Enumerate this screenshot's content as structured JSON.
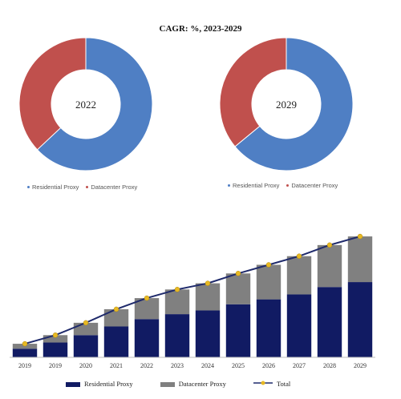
{
  "title": "CAGR:    %, 2023-2029",
  "colors": {
    "residential": "#4f7fc4",
    "datacenter": "#c0504d",
    "bar_residential": "#111b63",
    "bar_datacenter": "#808080",
    "total_line": "#1f2a6b",
    "total_marker": "#e8b923"
  },
  "chart_data": [
    {
      "type": "pie",
      "center_label": "2022",
      "labels": [
        "Residential Proxy",
        "Datacenter Proxy"
      ],
      "values": [
        63,
        37
      ]
    },
    {
      "type": "pie",
      "center_label": "2029",
      "labels": [
        "Residential Proxy",
        "Datacenter Proxy"
      ],
      "values": [
        64,
        36
      ]
    },
    {
      "type": "bar",
      "stacked": true,
      "categories": [
        "2019",
        "2019",
        "2020",
        "2021",
        "2022",
        "2023",
        "2024",
        "2025",
        "2026",
        "2027",
        "2028",
        "2029"
      ],
      "series": [
        {
          "name": "Residential Proxy",
          "values": [
            7,
            12,
            18,
            25,
            31,
            35,
            38,
            43,
            47,
            51,
            57,
            61
          ]
        },
        {
          "name": "Datacenter Proxy",
          "values": [
            4,
            6,
            10,
            14,
            17,
            20,
            22,
            25,
            28,
            31,
            34,
            37
          ]
        },
        {
          "name": "Total",
          "values": [
            11,
            18,
            28,
            39,
            48,
            55,
            60,
            68,
            75,
            82,
            91,
            98
          ]
        }
      ],
      "ylim": [
        0,
        100
      ],
      "legend": "bottom",
      "grid": false
    }
  ]
}
